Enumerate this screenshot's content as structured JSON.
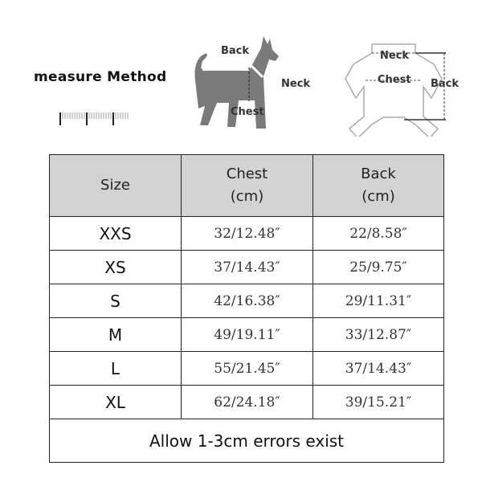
{
  "header": {
    "measure_title": "measure Method",
    "dog_labels": {
      "back": "Back",
      "neck": "Neck",
      "chest": "Chest"
    },
    "shirt_labels": {
      "neck": "Neck",
      "chest": "Chest",
      "back": "Back"
    }
  },
  "table": {
    "columns": [
      {
        "line1": "Size",
        "line2": ""
      },
      {
        "line1": "Chest",
        "line2": "(cm)"
      },
      {
        "line1": "Back",
        "line2": "(cm)"
      }
    ],
    "rows": [
      {
        "size": "XXS",
        "chest": "32/12.48″",
        "back": "22/8.58″"
      },
      {
        "size": "XS",
        "chest": "37/14.43″",
        "back": "25/9.75″"
      },
      {
        "size": "S",
        "chest": "42/16.38″",
        "back": "29/11.31″"
      },
      {
        "size": "M",
        "chest": "49/19.11″",
        "back": "33/12.87″"
      },
      {
        "size": "L",
        "chest": "55/21.45″",
        "back": "37/14.43″"
      },
      {
        "size": "XL",
        "chest": "62/24.18″",
        "back": "39/15.21″"
      }
    ],
    "footer": "Allow 1-3cm errors exist",
    "header_bg": "#d3d3d3"
  }
}
